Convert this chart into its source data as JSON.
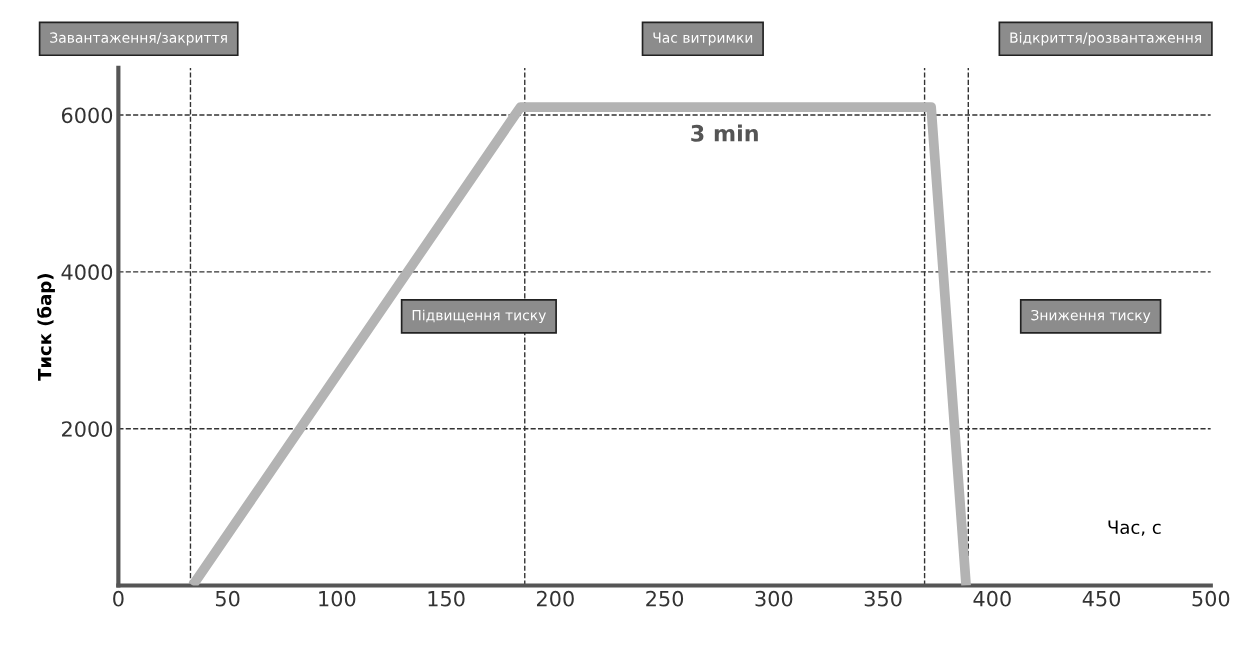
{
  "chart_data": {
    "type": "line",
    "xlabel": "Час, с",
    "ylabel": "Тиск (бар)",
    "x": [
      34,
      184,
      372,
      388
    ],
    "series": [
      {
        "color": "#b3b3b3",
        "values": [
          0,
          6100,
          6100,
          0
        ]
      }
    ],
    "xlim": [
      0,
      500
    ],
    "xticks": [
      0,
      50,
      100,
      150,
      200,
      250,
      300,
      350,
      400,
      450,
      500
    ],
    "ylim": [
      0,
      6600
    ],
    "yticks": [
      2000,
      4000,
      6000
    ],
    "grid": "y",
    "line_style": "solid",
    "marker": "none",
    "ref_lines": [
      {
        "axis": "x",
        "value": 33,
        "line_style": "dashed",
        "color": "#333333"
      },
      {
        "axis": "x",
        "value": 186,
        "line_style": "dashed",
        "color": "#333333"
      },
      {
        "axis": "x",
        "value": 369,
        "line_style": "dashed",
        "color": "#333333"
      },
      {
        "axis": "x",
        "value": 389,
        "line_style": "dashed",
        "color": "#333333"
      }
    ],
    "annotations": [
      "Завантаження/закриття",
      "Час витримки",
      "Відкриття/розвантаження",
      "Підвищення тиску",
      "Зниження тиску",
      "3 min"
    ]
  }
}
